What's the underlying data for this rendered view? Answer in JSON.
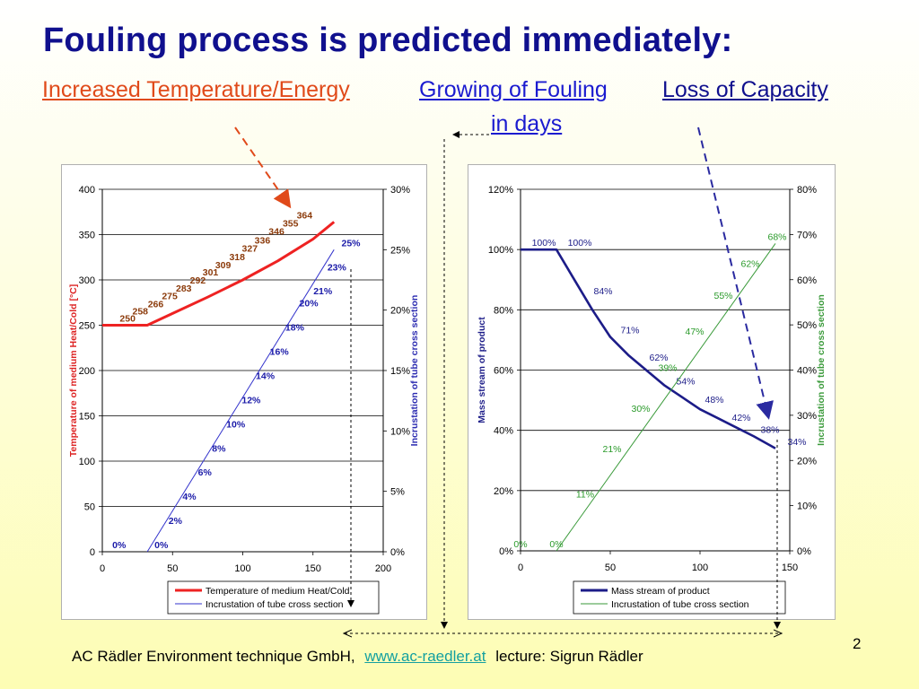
{
  "slide": {
    "title": "Fouling process is predicted immediately:",
    "sub_temp": "Increased Temperature/Energy",
    "sub_fouling": "Growing of Fouling",
    "sub_capacity": "Loss of Capacity",
    "sub_days": "in days",
    "footer_company": "AC Rädler Environment technique GmbH,",
    "footer_link": "www.ac-raedler.at",
    "footer_lecture": "lecture: Sigrun Rädler",
    "page_number": "2",
    "colors": {
      "title": "#10108e",
      "red_arrow": "#e04a1a",
      "blue_arrow": "#2a2aa0",
      "link": "#14a0a0"
    }
  },
  "chart_data": [
    {
      "type": "line",
      "xlim": [
        0,
        200
      ],
      "xticks": [
        0,
        50,
        100,
        150,
        200
      ],
      "ylim": [
        0,
        400
      ],
      "yticks": [
        0,
        50,
        100,
        150,
        200,
        250,
        300,
        350,
        400
      ],
      "ytick_labels": [
        "0",
        "50",
        "100",
        "150",
        "200",
        "250",
        "300",
        "350",
        "400"
      ],
      "y2lim": [
        0,
        30
      ],
      "y2ticks": [
        0,
        5,
        10,
        15,
        20,
        25,
        30
      ],
      "y2tick_labels": [
        "0%",
        "5%",
        "10%",
        "15%",
        "20%",
        "25%",
        "30%"
      ],
      "ylabel": "Temperature of medium Heat/Cold [°C]",
      "y2label": "Incrustation of tube cross section",
      "grid": "horizontal",
      "legend_position": "bottom",
      "series": [
        {
          "name": "Temperature of medium Heat/Cold",
          "color": "#ee2222",
          "label_color": "#8b3a0a",
          "axis": "left",
          "x": [
            0,
            32,
            50,
            75,
            100,
            125,
            150,
            165
          ],
          "y": [
            250,
            250,
            263,
            281,
            300,
            321,
            345,
            364
          ],
          "labels": [
            {
              "x": 18,
              "y": 250,
              "text": "250"
            },
            {
              "x": 27,
              "y": 258,
              "text": "258"
            },
            {
              "x": 38,
              "y": 266,
              "text": "266"
            },
            {
              "x": 48,
              "y": 275,
              "text": "275"
            },
            {
              "x": 58,
              "y": 283,
              "text": "283"
            },
            {
              "x": 68,
              "y": 292,
              "text": "292"
            },
            {
              "x": 77,
              "y": 301,
              "text": "301"
            },
            {
              "x": 86,
              "y": 309,
              "text": "309"
            },
            {
              "x": 96,
              "y": 318,
              "text": "318"
            },
            {
              "x": 105,
              "y": 327,
              "text": "327"
            },
            {
              "x": 114,
              "y": 336,
              "text": "336"
            },
            {
              "x": 124,
              "y": 346,
              "text": "346"
            },
            {
              "x": 134,
              "y": 355,
              "text": "355"
            },
            {
              "x": 144,
              "y": 364,
              "text": "364"
            }
          ]
        },
        {
          "name": "Incrustation of tube cross section",
          "color": "#3333cc",
          "label_color": "#1a1aa8",
          "axis": "right",
          "x": [
            32,
            165
          ],
          "y": [
            0,
            25
          ],
          "labels": [
            {
              "x": 12,
              "y": 0,
              "text": "0%"
            },
            {
              "x": 42,
              "y": 0,
              "text": "0%"
            },
            {
              "x": 52,
              "y": 2,
              "text": "2%"
            },
            {
              "x": 62,
              "y": 4,
              "text": "4%"
            },
            {
              "x": 73,
              "y": 6,
              "text": "6%"
            },
            {
              "x": 83,
              "y": 8,
              "text": "8%"
            },
            {
              "x": 95,
              "y": 10,
              "text": "10%"
            },
            {
              "x": 106,
              "y": 12,
              "text": "12%"
            },
            {
              "x": 116,
              "y": 14,
              "text": "14%"
            },
            {
              "x": 126,
              "y": 16,
              "text": "16%"
            },
            {
              "x": 137,
              "y": 18,
              "text": "18%"
            },
            {
              "x": 147,
              "y": 20,
              "text": "20%"
            },
            {
              "x": 157,
              "y": 21,
              "text": "21%"
            },
            {
              "x": 167,
              "y": 23,
              "text": "23%"
            },
            {
              "x": 177,
              "y": 25,
              "text": "25%"
            }
          ]
        }
      ]
    },
    {
      "type": "line",
      "xlim": [
        0,
        150
      ],
      "xticks": [
        0,
        50,
        100,
        150
      ],
      "ylim": [
        0,
        120
      ],
      "yticks": [
        0,
        20,
        40,
        60,
        80,
        100,
        120
      ],
      "ytick_labels": [
        "0%",
        "20%",
        "40%",
        "60%",
        "80%",
        "100%",
        "120%"
      ],
      "y2lim": [
        0,
        80
      ],
      "y2ticks": [
        0,
        10,
        20,
        30,
        40,
        50,
        60,
        70,
        80
      ],
      "y2tick_labels": [
        "0%",
        "10%",
        "20%",
        "30%",
        "40%",
        "50%",
        "60%",
        "70%",
        "80%"
      ],
      "ylabel": "Mass stream of product",
      "y2label": "Incrustation of tube cross section",
      "grid": "horizontal",
      "legend_position": "bottom",
      "series": [
        {
          "name": "Mass stream of product",
          "color": "#1c1c88",
          "label_color": "#1c1c88",
          "axis": "left",
          "x": [
            0,
            20,
            30,
            40,
            50,
            60,
            70,
            80,
            90,
            100,
            110,
            120,
            130,
            142
          ],
          "y": [
            100,
            100,
            90,
            80,
            71,
            65,
            60,
            55,
            51,
            47,
            44,
            41,
            38,
            34
          ],
          "labels": [
            {
              "x": 13,
              "y": 100,
              "text": "100%"
            },
            {
              "x": 33,
              "y": 100,
              "text": "100%"
            },
            {
              "x": 46,
              "y": 84,
              "text": "84%"
            },
            {
              "x": 61,
              "y": 71,
              "text": "71%"
            },
            {
              "x": 77,
              "y": 62,
              "text": "62%"
            },
            {
              "x": 92,
              "y": 54,
              "text": "54%"
            },
            {
              "x": 108,
              "y": 48,
              "text": "48%"
            },
            {
              "x": 123,
              "y": 42,
              "text": "42%"
            },
            {
              "x": 139,
              "y": 38,
              "text": "38%"
            },
            {
              "x": 154,
              "y": 34,
              "text": "34%"
            }
          ]
        },
        {
          "name": "Incrustation of tube cross section",
          "color": "#3a9a3a",
          "label_color": "#2a9a2a",
          "axis": "right",
          "x": [
            20,
            142
          ],
          "y": [
            0,
            68
          ],
          "labels": [
            {
              "x": 0,
              "y": 0,
              "text": "0%"
            },
            {
              "x": 20,
              "y": 0,
              "text": "0%"
            },
            {
              "x": 36,
              "y": 11,
              "text": "11%"
            },
            {
              "x": 51,
              "y": 21,
              "text": "21%"
            },
            {
              "x": 67,
              "y": 30,
              "text": "30%"
            },
            {
              "x": 82,
              "y": 39,
              "text": "39%"
            },
            {
              "x": 97,
              "y": 47,
              "text": "47%"
            },
            {
              "x": 113,
              "y": 55,
              "text": "55%"
            },
            {
              "x": 128,
              "y": 62,
              "text": "62%"
            },
            {
              "x": 143,
              "y": 68,
              "text": "68%"
            }
          ]
        }
      ]
    }
  ]
}
